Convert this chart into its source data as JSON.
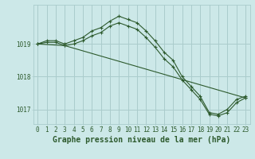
{
  "bg_color": "#cce8e8",
  "grid_color": "#aacccc",
  "line_color": "#2d5a2d",
  "marker_color": "#2d5a2d",
  "xlabel": "Graphe pression niveau de la mer (hPa)",
  "xlim": [
    -0.5,
    23.5
  ],
  "ylim": [
    1016.55,
    1020.2
  ],
  "yticks": [
    1017,
    1018,
    1019
  ],
  "xticks": [
    0,
    1,
    2,
    3,
    4,
    5,
    6,
    7,
    8,
    9,
    10,
    11,
    12,
    13,
    14,
    15,
    16,
    17,
    18,
    19,
    20,
    21,
    22,
    23
  ],
  "series": [
    {
      "x": [
        0,
        1,
        2,
        3,
        4,
        5,
        6,
        7,
        8,
        9,
        10,
        11,
        12,
        13,
        14,
        15,
        16,
        17,
        18,
        19,
        20,
        21,
        22,
        23
      ],
      "y": [
        1019.0,
        1019.1,
        1019.1,
        1019.0,
        1019.1,
        1019.2,
        1019.4,
        1019.5,
        1019.7,
        1019.85,
        1019.75,
        1019.65,
        1019.4,
        1019.1,
        1018.75,
        1018.5,
        1018.0,
        1017.7,
        1017.4,
        1016.9,
        1016.85,
        1017.0,
        1017.3,
        1017.4
      ]
    },
    {
      "x": [
        0,
        1,
        2,
        3,
        4,
        5,
        6,
        7,
        8,
        9,
        10,
        11,
        12,
        13,
        14,
        15,
        16,
        17,
        18,
        19,
        20,
        21,
        22,
        23
      ],
      "y": [
        1019.0,
        1019.05,
        1019.05,
        1018.95,
        1019.0,
        1019.1,
        1019.25,
        1019.35,
        1019.55,
        1019.65,
        1019.55,
        1019.45,
        1019.2,
        1018.9,
        1018.55,
        1018.3,
        1017.9,
        1017.6,
        1017.3,
        1016.85,
        1016.8,
        1016.9,
        1017.2,
        1017.35
      ]
    },
    {
      "x": [
        0,
        3,
        23
      ],
      "y": [
        1019.0,
        1018.95,
        1017.35
      ]
    }
  ],
  "tick_fontsize": 5.5,
  "xlabel_fontsize": 7,
  "xlabel_fontweight": "bold"
}
